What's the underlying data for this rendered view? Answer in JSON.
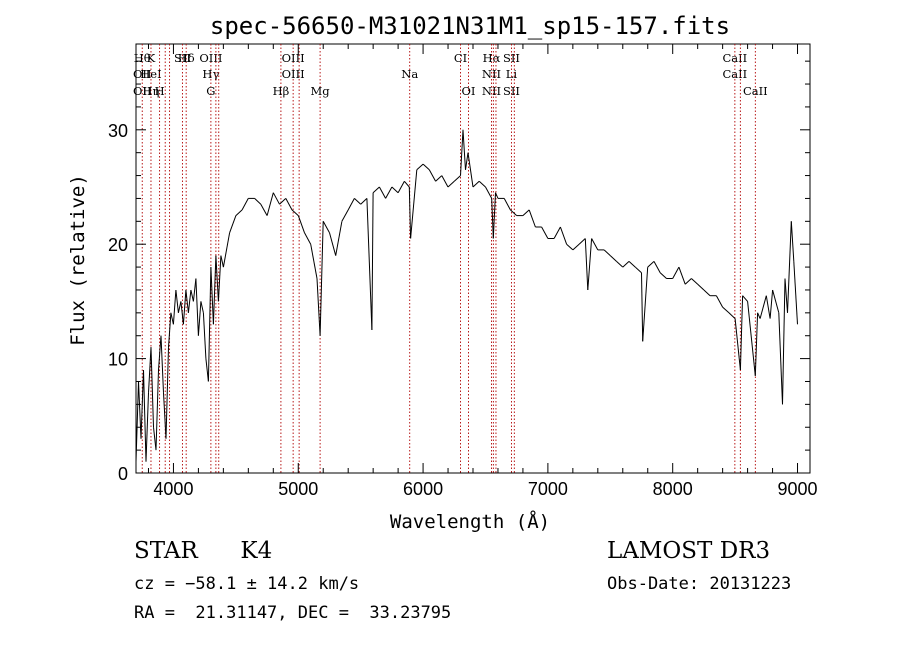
{
  "chart_data": {
    "type": "line",
    "title": "spec-56650-M31021N31M1_sp15-157.fits",
    "xlabel": "Wavelength (Å)",
    "ylabel": "Flux (relative)",
    "xlim": [
      3700,
      9100
    ],
    "ylim": [
      0,
      37.5
    ],
    "xticks": [
      4000,
      5000,
      6000,
      7000,
      8000,
      9000
    ],
    "yticks": [
      0,
      10,
      20,
      30
    ],
    "grid": false,
    "series": [
      {
        "name": "flux",
        "x": [
          3700,
          3720,
          3740,
          3760,
          3780,
          3800,
          3820,
          3840,
          3860,
          3880,
          3900,
          3920,
          3940,
          3960,
          3980,
          4000,
          4020,
          4040,
          4060,
          4080,
          4100,
          4120,
          4140,
          4160,
          4180,
          4200,
          4220,
          4240,
          4260,
          4280,
          4300,
          4320,
          4340,
          4360,
          4380,
          4400,
          4450,
          4500,
          4550,
          4600,
          4650,
          4700,
          4750,
          4800,
          4850,
          4900,
          4950,
          5000,
          5050,
          5100,
          5150,
          5175,
          5200,
          5250,
          5300,
          5350,
          5400,
          5450,
          5500,
          5550,
          5590,
          5600,
          5650,
          5700,
          5750,
          5800,
          5850,
          5890,
          5900,
          5950,
          6000,
          6050,
          6100,
          6150,
          6200,
          6250,
          6300,
          6320,
          6340,
          6360,
          6400,
          6450,
          6500,
          6550,
          6563,
          6580,
          6600,
          6650,
          6700,
          6750,
          6800,
          6850,
          6900,
          6950,
          7000,
          7050,
          7100,
          7150,
          7200,
          7250,
          7300,
          7320,
          7350,
          7400,
          7450,
          7500,
          7550,
          7600,
          7650,
          7700,
          7750,
          7760,
          7800,
          7850,
          7900,
          7950,
          8000,
          8050,
          8100,
          8150,
          8200,
          8250,
          8300,
          8350,
          8400,
          8450,
          8500,
          8542,
          8560,
          8600,
          8662,
          8680,
          8700,
          8750,
          8780,
          8800,
          8850,
          8880,
          8900,
          8920,
          8950,
          8970,
          9000
        ],
        "values": [
          1.0,
          8.0,
          3.0,
          9.0,
          1.0,
          7.0,
          11.0,
          4.0,
          2.0,
          9.0,
          12.0,
          7.0,
          3.0,
          11.0,
          14.0,
          13.0,
          16.0,
          14.0,
          15.0,
          13.0,
          16.0,
          14.0,
          16.0,
          15.0,
          17.0,
          12.0,
          15.0,
          14.0,
          10.0,
          8.0,
          18.0,
          13.0,
          19.0,
          15.0,
          19.0,
          18.0,
          21.0,
          22.5,
          23.0,
          24.0,
          24.0,
          23.5,
          22.5,
          24.5,
          23.5,
          24.0,
          23.0,
          22.5,
          21.0,
          20.0,
          17.0,
          12.0,
          22.0,
          21.0,
          19.0,
          22.0,
          23.0,
          24.0,
          23.5,
          24.0,
          12.5,
          24.5,
          25.0,
          24.0,
          25.0,
          24.5,
          25.5,
          25.0,
          20.5,
          26.5,
          27.0,
          26.5,
          25.5,
          26.0,
          25.0,
          25.5,
          26.0,
          30.0,
          26.5,
          28.0,
          25.0,
          25.5,
          25.0,
          24.0,
          20.5,
          24.5,
          24.0,
          24.0,
          23.0,
          22.5,
          22.5,
          23.0,
          21.5,
          21.5,
          20.5,
          20.5,
          21.5,
          20.0,
          19.5,
          20.0,
          20.5,
          16.0,
          20.5,
          19.5,
          19.5,
          19.0,
          18.5,
          18.0,
          18.5,
          18.0,
          17.5,
          11.5,
          18.0,
          18.5,
          17.5,
          17.0,
          17.0,
          18.0,
          16.5,
          17.0,
          16.5,
          16.0,
          15.5,
          15.5,
          14.5,
          14.0,
          13.5,
          9.0,
          15.5,
          15.0,
          8.5,
          14.0,
          13.5,
          15.5,
          13.5,
          16.0,
          14.0,
          6.0,
          17.0,
          14.0,
          22.0,
          18.5,
          13.0
        ]
      }
    ],
    "lines": [
      {
        "wave": 3750,
        "labels": [
          "Hθ",
          "OII",
          "OII"
        ]
      },
      {
        "wave": 3820,
        "labels": [
          "K",
          "HeI",
          "Hη"
        ]
      },
      {
        "wave": 3889,
        "labels": [
          "",
          "",
          "H"
        ]
      },
      {
        "wave": 3934,
        "labels": [
          "",
          "",
          ""
        ]
      },
      {
        "wave": 3969,
        "labels": [
          "",
          "",
          ""
        ]
      },
      {
        "wave": 4072,
        "labels": [
          "SII",
          "",
          ""
        ]
      },
      {
        "wave": 4102,
        "labels": [
          "Hδ",
          "",
          ""
        ]
      },
      {
        "wave": 4300,
        "labels": [
          "OIII",
          "Hγ",
          "G"
        ]
      },
      {
        "wave": 4340,
        "labels": [
          "",
          "",
          ""
        ]
      },
      {
        "wave": 4363,
        "labels": [
          "",
          "",
          ""
        ]
      },
      {
        "wave": 4861,
        "labels": [
          "",
          "",
          "Hβ"
        ]
      },
      {
        "wave": 4959,
        "labels": [
          "OIII",
          "OIII",
          ""
        ]
      },
      {
        "wave": 5007,
        "labels": [
          "",
          "",
          ""
        ]
      },
      {
        "wave": 5175,
        "labels": [
          "",
          "",
          "Mg"
        ]
      },
      {
        "wave": 5893,
        "labels": [
          "",
          "Na",
          ""
        ]
      },
      {
        "wave": 6300,
        "labels": [
          "CI",
          "",
          ""
        ]
      },
      {
        "wave": 6364,
        "labels": [
          "",
          "",
          "OI"
        ]
      },
      {
        "wave": 6548,
        "labels": [
          "Hα",
          "NII",
          "NII"
        ]
      },
      {
        "wave": 6563,
        "labels": [
          "",
          "",
          ""
        ]
      },
      {
        "wave": 6584,
        "labels": [
          "",
          "",
          ""
        ]
      },
      {
        "wave": 6708,
        "labels": [
          "SII",
          "Li",
          "SII"
        ]
      },
      {
        "wave": 6731,
        "labels": [
          "",
          "",
          ""
        ]
      },
      {
        "wave": 8498,
        "labels": [
          "CaII",
          "CaII",
          ""
        ]
      },
      {
        "wave": 8542,
        "labels": [
          "",
          "",
          ""
        ]
      },
      {
        "wave": 8662,
        "labels": [
          "",
          "",
          "CaII"
        ]
      }
    ]
  },
  "info": {
    "class": "STAR",
    "subclass": "K4",
    "survey": "LAMOST DR3",
    "cz": "cz = −58.1 ± 14.2 km/s",
    "obs_date": "Obs-Date: 20131223",
    "radec": "RA =  21.31147, DEC =  33.23795"
  }
}
